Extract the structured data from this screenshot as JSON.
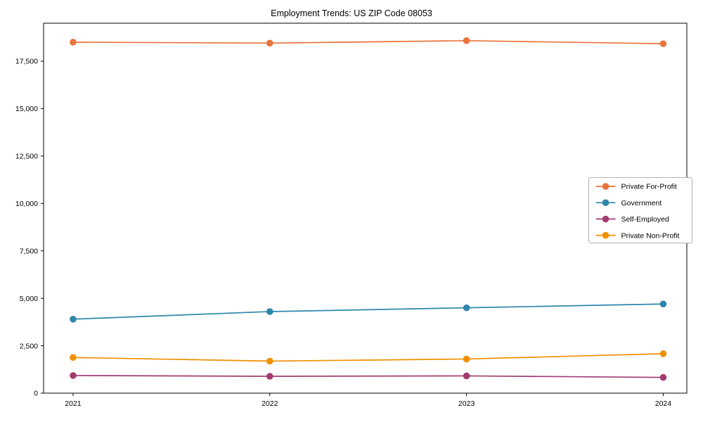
{
  "figure": {
    "background": "#ffffff",
    "spine_color": "#000000",
    "legend_border_color": "#b0b0b0",
    "legend_background": "#ffffff"
  },
  "chart_data": {
    "type": "line",
    "title": "Employment Trends: US ZIP Code 08053",
    "xlabel": "",
    "ylabel": "",
    "x": [
      2021,
      2022,
      2023,
      2024
    ],
    "x_tick_labels": [
      "2021",
      "2022",
      "2023",
      "2024"
    ],
    "y_ticks": [
      0,
      2500,
      5000,
      7500,
      10000,
      12500,
      15000,
      17500
    ],
    "y_tick_labels": [
      "0",
      "2,500",
      "5,000",
      "7,500",
      "10,000",
      "12,500",
      "15,000",
      "17,500"
    ],
    "xlim": [
      2020.85,
      2024.12
    ],
    "ylim": [
      0,
      19500
    ],
    "grid": false,
    "legend_position": "center right",
    "marker": "o",
    "series": [
      {
        "name": "Private For-Profit",
        "color": "#E8743B",
        "values": [
          18500,
          18450,
          18580,
          18420
        ]
      },
      {
        "name": "Government",
        "color": "#2E86AB",
        "values": [
          3900,
          4300,
          4500,
          4700
        ]
      },
      {
        "name": "Self-Employed",
        "color": "#A23B72",
        "values": [
          930,
          890,
          910,
          830
        ]
      },
      {
        "name": "Private Non-Profit",
        "color": "#F18F01",
        "values": [
          1880,
          1690,
          1800,
          2080
        ]
      }
    ]
  }
}
